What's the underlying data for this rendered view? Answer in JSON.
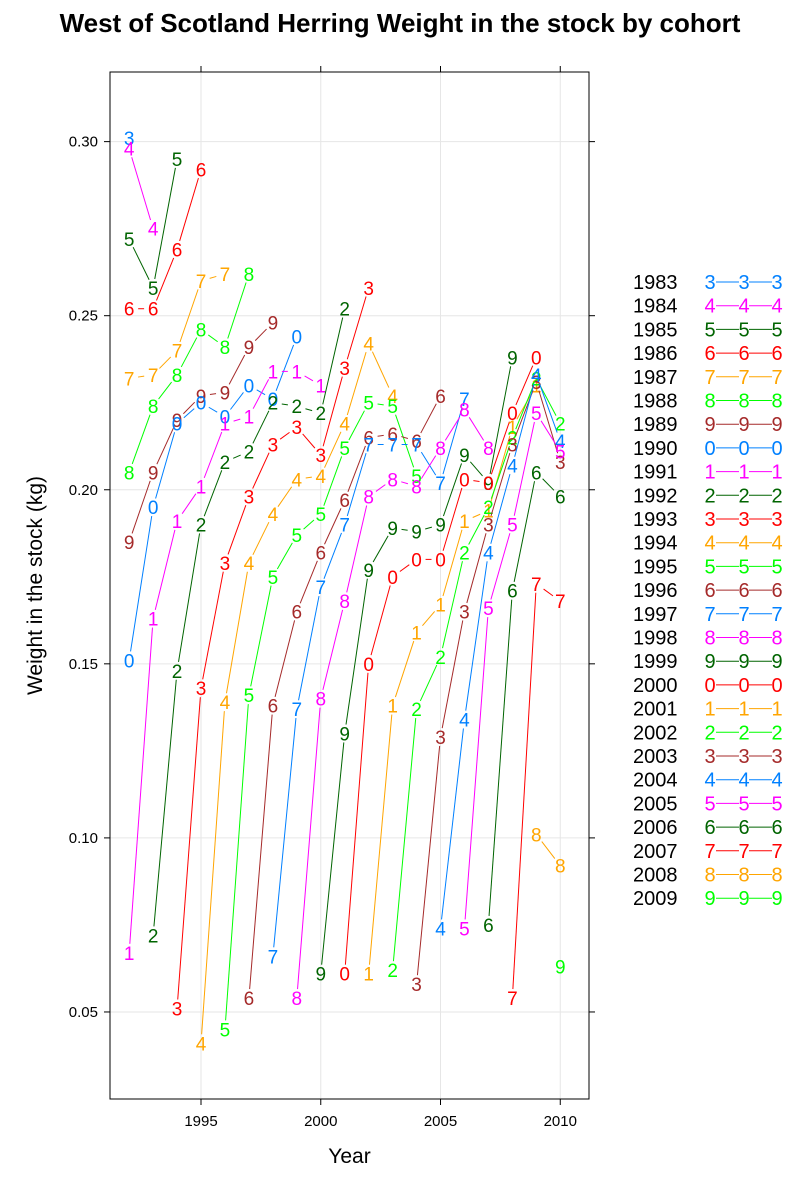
{
  "chart_data": {
    "type": "line",
    "title": "West of Scotland Herring Weight in the stock by cohort",
    "xlabel": "Year",
    "ylabel": "Weight in the stock (kg)",
    "xlim": [
      1991.2,
      2011.2
    ],
    "ylim": [
      0.025,
      0.32
    ],
    "x_ticks": [
      1995,
      2000,
      2005,
      2010
    ],
    "y_ticks": [
      0.05,
      0.1,
      0.15,
      0.2,
      0.25,
      0.3
    ],
    "y_tick_labels": [
      "0.05",
      "0.10",
      "0.15",
      "0.20",
      "0.25",
      "0.30"
    ],
    "grid": true,
    "legend_position": "right",
    "series": [
      {
        "name": "1983",
        "symbol": "3",
        "color": "#0080ff",
        "x": [
          1992
        ],
        "y": [
          0.301
        ]
      },
      {
        "name": "1984",
        "symbol": "4",
        "color": "#ff00ff",
        "x": [
          1992,
          1993
        ],
        "y": [
          0.298,
          0.275
        ]
      },
      {
        "name": "1985",
        "symbol": "5",
        "color": "#006400",
        "x": [
          1992,
          1993,
          1994
        ],
        "y": [
          0.272,
          0.258,
          0.295
        ]
      },
      {
        "name": "1986",
        "symbol": "6",
        "color": "#ff0000",
        "x": [
          1992,
          1993,
          1994,
          1995
        ],
        "y": [
          0.252,
          0.252,
          0.269,
          0.292
        ]
      },
      {
        "name": "1987",
        "symbol": "7",
        "color": "#ffa500",
        "x": [
          1992,
          1993,
          1994,
          1995,
          1996
        ],
        "y": [
          0.232,
          0.233,
          0.24,
          0.26,
          0.262
        ]
      },
      {
        "name": "1988",
        "symbol": "8",
        "color": "#00ff00",
        "x": [
          1992,
          1993,
          1994,
          1995,
          1996,
          1997
        ],
        "y": [
          0.205,
          0.224,
          0.233,
          0.246,
          0.241,
          0.262
        ]
      },
      {
        "name": "1989",
        "symbol": "9",
        "color": "#a52a2a",
        "x": [
          1992,
          1993,
          1994,
          1995,
          1996,
          1997,
          1998
        ],
        "y": [
          0.185,
          0.205,
          0.22,
          0.227,
          0.228,
          0.241,
          0.248
        ]
      },
      {
        "name": "1990",
        "symbol": "0",
        "color": "#0080ff",
        "x": [
          1992,
          1993,
          1994,
          1995,
          1996,
          1997,
          1998,
          1999
        ],
        "y": [
          0.151,
          0.195,
          0.219,
          0.225,
          0.221,
          0.23,
          0.226,
          0.244
        ]
      },
      {
        "name": "1991",
        "symbol": "1",
        "color": "#ff00ff",
        "x": [
          1992,
          1993,
          1994,
          1995,
          1996,
          1997,
          1998,
          1999,
          2000
        ],
        "y": [
          0.067,
          0.163,
          0.191,
          0.201,
          0.219,
          0.221,
          0.234,
          0.234,
          0.23
        ]
      },
      {
        "name": "1992",
        "symbol": "2",
        "color": "#006400",
        "x": [
          1993,
          1994,
          1995,
          1996,
          1997,
          1998,
          1999,
          2000,
          2001
        ],
        "y": [
          0.072,
          0.148,
          0.19,
          0.208,
          0.211,
          0.225,
          0.224,
          0.222,
          0.252
        ]
      },
      {
        "name": "1993",
        "symbol": "3",
        "color": "#ff0000",
        "x": [
          1994,
          1995,
          1996,
          1997,
          1998,
          1999,
          2000,
          2001,
          2002
        ],
        "y": [
          0.051,
          0.143,
          0.179,
          0.198,
          0.213,
          0.218,
          0.21,
          0.235,
          0.258
        ]
      },
      {
        "name": "1994",
        "symbol": "4",
        "color": "#ffa500",
        "x": [
          1995,
          1996,
          1997,
          1998,
          1999,
          2000,
          2001,
          2002,
          2003
        ],
        "y": [
          0.041,
          0.139,
          0.179,
          0.193,
          0.203,
          0.204,
          0.219,
          0.242,
          0.227
        ]
      },
      {
        "name": "1995",
        "symbol": "5",
        "color": "#00ff00",
        "x": [
          1996,
          1997,
          1998,
          1999,
          2000,
          2001,
          2002,
          2003,
          2004
        ],
        "y": [
          0.045,
          0.141,
          0.175,
          0.187,
          0.193,
          0.212,
          0.225,
          0.224,
          0.204
        ]
      },
      {
        "name": "1996",
        "symbol": "6",
        "color": "#a52a2a",
        "x": [
          1997,
          1998,
          1999,
          2000,
          2001,
          2002,
          2003,
          2004,
          2005
        ],
        "y": [
          0.054,
          0.138,
          0.165,
          0.182,
          0.197,
          0.215,
          0.216,
          0.214,
          0.227
        ]
      },
      {
        "name": "1997",
        "symbol": "7",
        "color": "#0080ff",
        "x": [
          1998,
          1999,
          2000,
          2001,
          2002,
          2003,
          2004,
          2005,
          2006
        ],
        "y": [
          0.066,
          0.137,
          0.172,
          0.19,
          0.213,
          0.213,
          0.213,
          0.202,
          0.226
        ]
      },
      {
        "name": "1998",
        "symbol": "8",
        "color": "#ff00ff",
        "x": [
          1999,
          2000,
          2001,
          2002,
          2003,
          2004,
          2005,
          2006,
          2007
        ],
        "y": [
          0.054,
          0.14,
          0.168,
          0.198,
          0.203,
          0.201,
          0.212,
          0.223,
          0.212
        ]
      },
      {
        "name": "1999",
        "symbol": "9",
        "color": "#006400",
        "x": [
          2000,
          2001,
          2002,
          2003,
          2004,
          2005,
          2006,
          2007,
          2008
        ],
        "y": [
          0.061,
          0.13,
          0.177,
          0.189,
          0.188,
          0.19,
          0.21,
          0.202,
          0.238
        ]
      },
      {
        "name": "2000",
        "symbol": "0",
        "color": "#ff0000",
        "x": [
          2001,
          2002,
          2003,
          2004,
          2005,
          2006,
          2007,
          2008,
          2009
        ],
        "y": [
          0.061,
          0.15,
          0.175,
          0.18,
          0.18,
          0.203,
          0.202,
          0.222,
          0.238
        ]
      },
      {
        "name": "2001",
        "symbol": "1",
        "color": "#ffa500",
        "x": [
          2002,
          2003,
          2004,
          2005,
          2006,
          2007,
          2008,
          2009
        ],
        "y": [
          0.061,
          0.138,
          0.159,
          0.167,
          0.191,
          0.194,
          0.218,
          0.23
        ]
      },
      {
        "name": "2002",
        "symbol": "2",
        "color": "#00ff00",
        "x": [
          2003,
          2004,
          2005,
          2006,
          2007,
          2008,
          2009,
          2010
        ],
        "y": [
          0.062,
          0.137,
          0.152,
          0.182,
          0.195,
          0.215,
          0.232,
          0.219
        ]
      },
      {
        "name": "2003",
        "symbol": "3",
        "color": "#a52a2a",
        "x": [
          2004,
          2005,
          2006,
          2007,
          2008,
          2009,
          2010
        ],
        "y": [
          0.058,
          0.129,
          0.165,
          0.19,
          0.213,
          0.231,
          0.208
        ]
      },
      {
        "name": "2004",
        "symbol": "4",
        "color": "#0080ff",
        "x": [
          2005,
          2006,
          2007,
          2008,
          2009,
          2010
        ],
        "y": [
          0.074,
          0.134,
          0.182,
          0.207,
          0.233,
          0.214
        ]
      },
      {
        "name": "2005",
        "symbol": "5",
        "color": "#ff00ff",
        "x": [
          2006,
          2007,
          2008,
          2009,
          2010
        ],
        "y": [
          0.074,
          0.166,
          0.19,
          0.222,
          0.211
        ]
      },
      {
        "name": "2006",
        "symbol": "6",
        "color": "#006400",
        "x": [
          2007,
          2008,
          2009,
          2010
        ],
        "y": [
          0.075,
          0.171,
          0.205,
          0.198
        ]
      },
      {
        "name": "2007",
        "symbol": "7",
        "color": "#ff0000",
        "x": [
          2008,
          2009,
          2010
        ],
        "y": [
          0.054,
          0.173,
          0.168
        ]
      },
      {
        "name": "2008",
        "symbol": "8",
        "color": "#ffa500",
        "x": [
          2009,
          2010
        ],
        "y": [
          0.101,
          0.092
        ]
      },
      {
        "name": "2009",
        "symbol": "9",
        "color": "#00ff00",
        "x": [
          2010
        ],
        "y": [
          0.063
        ]
      }
    ]
  }
}
